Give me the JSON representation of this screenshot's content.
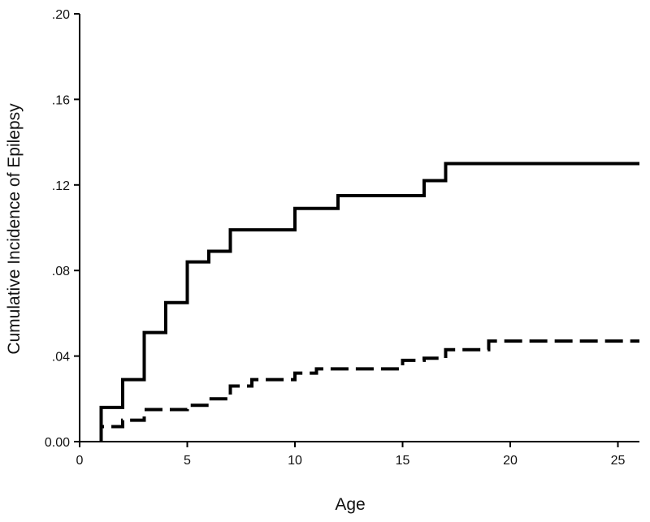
{
  "chart_data": {
    "type": "line",
    "title": "",
    "xlabel": "Age",
    "ylabel": "Cumulative Incidence of Epilepsy",
    "xlim": [
      0,
      26
    ],
    "ylim": [
      0,
      0.2
    ],
    "x_ticks": [
      0,
      5,
      10,
      15,
      20,
      25
    ],
    "x_tick_labels": [
      "0",
      "5",
      "10",
      "15",
      "20",
      "25"
    ],
    "y_ticks": [
      0,
      0.04,
      0.08,
      0.12,
      0.16,
      0.2
    ],
    "y_tick_labels": [
      "0.00",
      ".04",
      ".08",
      ".12",
      ".16",
      ".20"
    ],
    "grid": false,
    "legend": "none",
    "step": true,
    "series": [
      {
        "line_style": "solid",
        "color": "#000000",
        "x": [
          1,
          2,
          3,
          4,
          5,
          6,
          7,
          10,
          12,
          16,
          17,
          26
        ],
        "y": [
          0.016,
          0.029,
          0.051,
          0.065,
          0.084,
          0.089,
          0.099,
          0.109,
          0.115,
          0.122,
          0.13,
          0.13
        ]
      },
      {
        "line_style": "dashed",
        "color": "#000000",
        "x": [
          1,
          2,
          3,
          5,
          6,
          7,
          8,
          10,
          11,
          15,
          16,
          17,
          19,
          26
        ],
        "y": [
          0.007,
          0.01,
          0.015,
          0.017,
          0.02,
          0.026,
          0.029,
          0.032,
          0.034,
          0.038,
          0.039,
          0.043,
          0.047,
          0.047
        ]
      }
    ]
  }
}
